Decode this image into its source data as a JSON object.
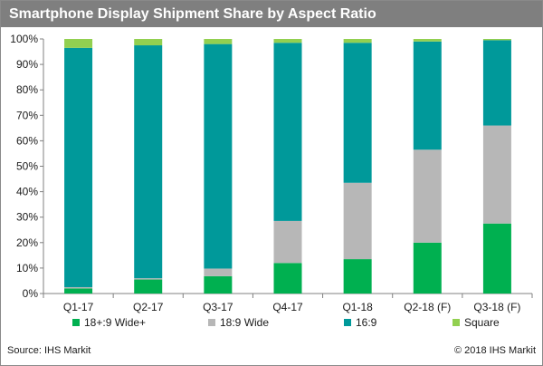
{
  "header": {
    "title": "Smartphone Display Shipment Share by Aspect Ratio"
  },
  "footer": {
    "source": "Source: IHS Markit",
    "copyright": "© 2018 IHS Markit"
  },
  "colors": {
    "title_bar": "#7f7f7f"
  },
  "chart_data": {
    "type": "bar",
    "stacked": true,
    "title": "Smartphone Display Shipment Share by Aspect Ratio",
    "categories": [
      "Q1-17",
      "Q2-17",
      "Q3-17",
      "Q4-17",
      "Q1-18",
      "Q2-18 (F)",
      "Q3-18 (F)"
    ],
    "ylim": [
      0,
      100
    ],
    "yticks": [
      0,
      10,
      20,
      30,
      40,
      50,
      60,
      70,
      80,
      90,
      100
    ],
    "ytick_labels": [
      "0%",
      "10%",
      "20%",
      "30%",
      "40%",
      "50%",
      "60%",
      "70%",
      "80%",
      "90%",
      "100%"
    ],
    "grid": false,
    "legend_position": "bottom",
    "series": [
      {
        "name": "18+:9 Wide+",
        "color": "#00b050",
        "values": [
          2,
          5.5,
          6.8,
          12,
          13.5,
          20,
          27.5
        ]
      },
      {
        "name": "18:9 Wide",
        "color": "#b7b7b7",
        "values": [
          0.5,
          0.5,
          3,
          16.5,
          30,
          36.5,
          38.5
        ]
      },
      {
        "name": "16:9",
        "color": "#00999a",
        "values": [
          94,
          91.5,
          88.2,
          70,
          55,
          42.5,
          33.5
        ]
      },
      {
        "name": "Square",
        "color": "#92d050",
        "values": [
          3.5,
          2.5,
          2,
          1.5,
          1.5,
          1,
          0.5
        ]
      }
    ]
  }
}
